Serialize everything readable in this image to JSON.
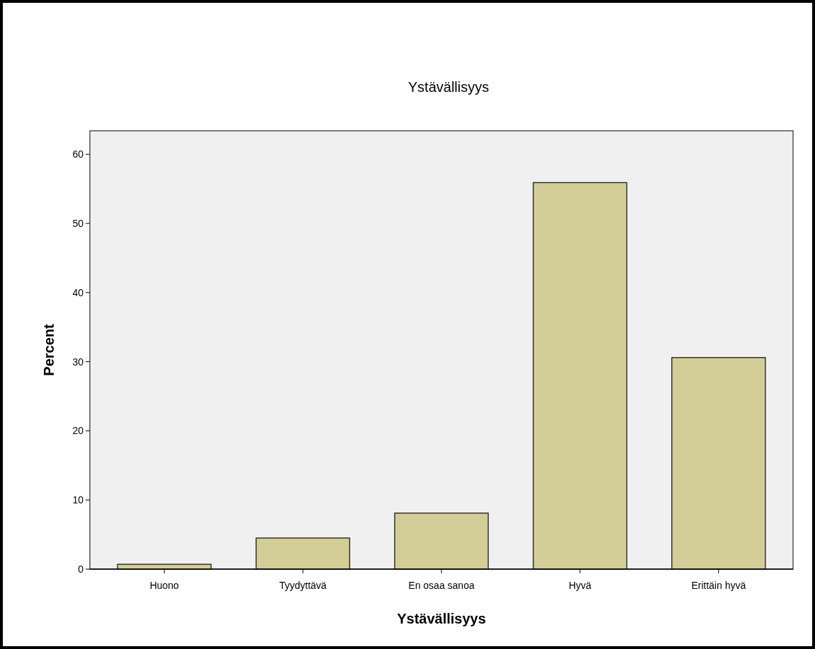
{
  "chart_data": {
    "type": "bar",
    "title": "Ystävällisyys",
    "xlabel": "Ystävällisyys",
    "ylabel": "Percent",
    "categories": [
      "Huono",
      "Tyydyttävä",
      "En osaa sanoa",
      "Hyvä",
      "Erittäin hyvä"
    ],
    "values": [
      0.7,
      4.5,
      8.1,
      55.9,
      30.6
    ],
    "color": "#d3ce97",
    "ylim": [
      0,
      63.4
    ],
    "yticks": [
      0,
      10,
      20,
      30,
      40,
      50,
      60
    ],
    "grid": false
  }
}
